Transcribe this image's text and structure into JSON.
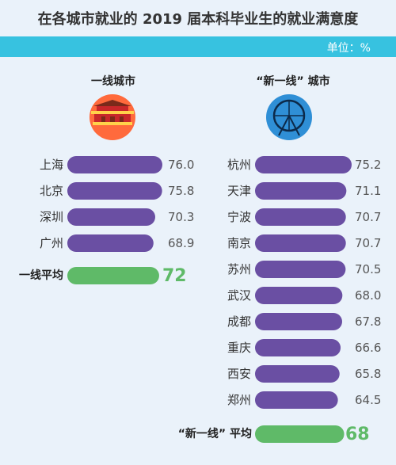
{
  "title": "在各城市就业的 2019 届本科毕业生的就业满意度",
  "unit": "单位：%",
  "colors": {
    "bar": "#6a4fa3",
    "avg_bar": "#5fba68",
    "unit_bar": "#37c2e0",
    "icon_left": "#ff6a3c",
    "icon_right": "#2f8fd6"
  },
  "chart_data": [
    {
      "type": "bar",
      "title": "一线城市",
      "icon": "tiananmen-icon",
      "categories": [
        "上海",
        "北京",
        "深圳",
        "广州"
      ],
      "values": [
        76.0,
        75.8,
        70.3,
        68.9
      ],
      "value_labels": [
        "76.0",
        "75.8",
        "70.3",
        "68.9"
      ],
      "average": {
        "label": "一线平均",
        "value": 72,
        "value_label": "72"
      },
      "xlim": [
        0,
        80
      ]
    },
    {
      "type": "bar",
      "title": "“新一线” 城市",
      "icon": "ferris-wheel-icon",
      "categories": [
        "杭州",
        "天津",
        "宁波",
        "南京",
        "苏州",
        "武汉",
        "成都",
        "重庆",
        "西安",
        "郑州"
      ],
      "values": [
        75.2,
        71.1,
        70.7,
        70.7,
        70.5,
        68.0,
        67.8,
        66.6,
        65.8,
        64.5
      ],
      "value_labels": [
        "75.2",
        "71.1",
        "70.7",
        "70.7",
        "70.5",
        "68.0",
        "67.8",
        "66.6",
        "65.8",
        "64.5"
      ],
      "average": {
        "label": "“新一线” 平均",
        "value": 68,
        "value_label": "68"
      },
      "xlim": [
        0,
        80
      ]
    }
  ]
}
